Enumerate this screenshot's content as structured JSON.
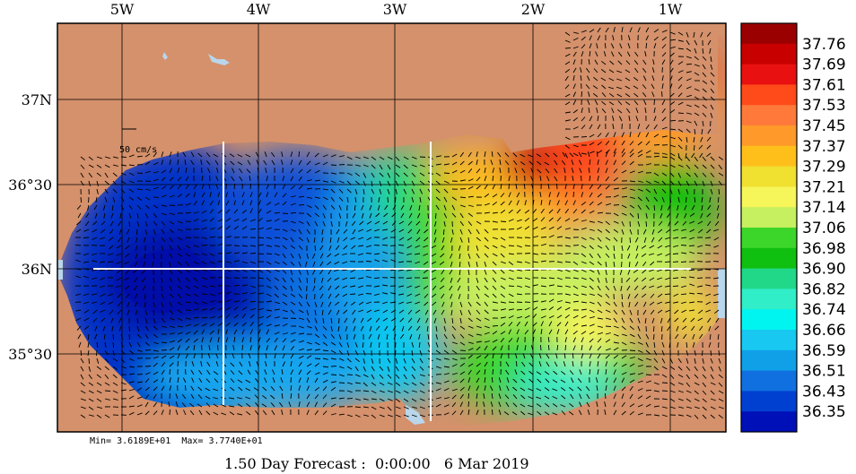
{
  "map": {
    "lon_labels": [
      "5W",
      "4W",
      "3W",
      "2W",
      "1W"
    ],
    "lat_labels": [
      "37N",
      "36°30",
      "36N",
      "35°30"
    ],
    "scale_label": "50 cm/s",
    "land_color": "#d4916b",
    "water_color": "#b9d6ea"
  },
  "colorbar": {
    "labels": [
      "37.76",
      "37.69",
      "37.61",
      "37.53",
      "37.45",
      "37.37",
      "37.29",
      "37.21",
      "37.14",
      "37.06",
      "36.98",
      "36.90",
      "36.82",
      "36.74",
      "36.66",
      "36.59",
      "36.51",
      "36.43",
      "36.35"
    ],
    "colors": [
      "#9b0000",
      "#c80000",
      "#e81010",
      "#ff4a1a",
      "#ff7a3a",
      "#ff9a2a",
      "#ffbf1a",
      "#f0e030",
      "#f6f55a",
      "#c6f060",
      "#3cd62a",
      "#10c010",
      "#20d888",
      "#30eec8",
      "#00f5f0",
      "#18c8f0",
      "#10a0e8",
      "#1070e0",
      "#0040d0",
      "#0010b8"
    ]
  },
  "footer": {
    "minmax": "Min= 3.6189E+01  Max= 3.7740E+01",
    "title": "1.50 Day Forecast :  0:00:00   6 Mar 2019"
  }
}
